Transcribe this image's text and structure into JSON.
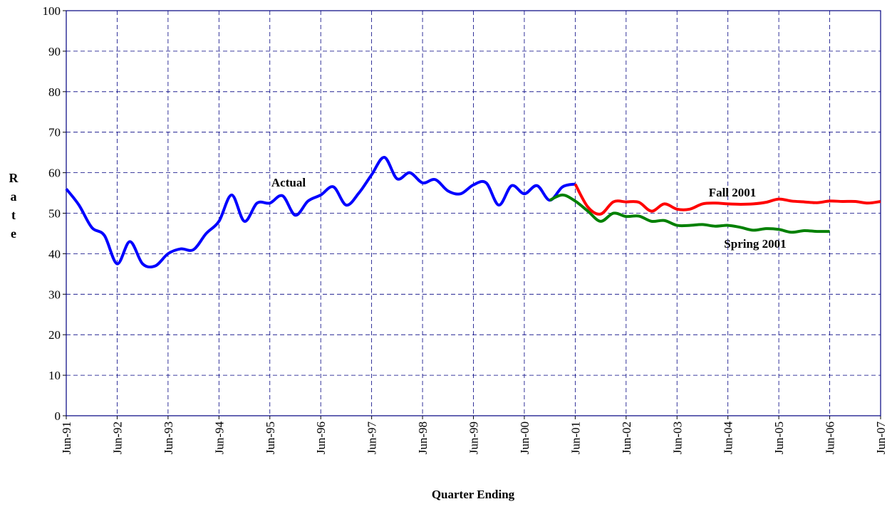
{
  "chart_data": {
    "type": "line",
    "x_label": "Quarter Ending",
    "y_label": "Rate",
    "categories": [
      "Jun-91",
      null,
      null,
      null,
      "Jun-92",
      null,
      null,
      null,
      "Jun-93",
      null,
      null,
      null,
      "Jun-94",
      null,
      null,
      null,
      "Jun-95",
      null,
      null,
      null,
      "Jun-96",
      null,
      null,
      null,
      "Jun-97",
      null,
      null,
      null,
      "Jun-98",
      null,
      null,
      null,
      "Jun-99",
      null,
      null,
      null,
      "Jun-00",
      null,
      null,
      null,
      "Jun-01",
      null,
      null,
      null,
      "Jun-02",
      null,
      null,
      null,
      "Jun-03",
      null,
      null,
      null,
      "Jun-04",
      null,
      null,
      null,
      "Jun-05",
      null,
      null,
      null,
      "Jun-06",
      null,
      null,
      null,
      "Jun-07"
    ],
    "series": [
      {
        "name": "Actual",
        "color": "#0000ff",
        "values": [
          56,
          52,
          46.5,
          44.5,
          37.5,
          43,
          37.5,
          37,
          40,
          41.2,
          41,
          45,
          48,
          54.5,
          48,
          52.5,
          52.5,
          54.3,
          49.5,
          53,
          54.5,
          56.5,
          52,
          55,
          59.5,
          63.8,
          58.5,
          60,
          57.5,
          58.3,
          55.5,
          54.8,
          57,
          57.5,
          52,
          56.8,
          54.8,
          56.8,
          53.2,
          56.5,
          57.2,
          null,
          null,
          null,
          null,
          null,
          null,
          null,
          null,
          null,
          null,
          null,
          null,
          null,
          null,
          null,
          null,
          null,
          null,
          null,
          null,
          null,
          null,
          null,
          null
        ]
      },
      {
        "name": "Spring 2001",
        "color": "#008000",
        "values": [
          null,
          null,
          null,
          null,
          null,
          null,
          null,
          null,
          null,
          null,
          null,
          null,
          null,
          null,
          null,
          null,
          null,
          null,
          null,
          null,
          null,
          null,
          null,
          null,
          null,
          null,
          null,
          null,
          null,
          null,
          null,
          null,
          null,
          null,
          null,
          null,
          null,
          null,
          53.2,
          54.5,
          53,
          50.5,
          48,
          50,
          49.2,
          49.3,
          48,
          48.2,
          47,
          47,
          47.2,
          46.8,
          47,
          46.5,
          45.8,
          46.2,
          46,
          45.3,
          45.7,
          45.5,
          45.5,
          null,
          null,
          null,
          null
        ]
      },
      {
        "name": "Fall 2001",
        "color": "#ff0000",
        "values": [
          null,
          null,
          null,
          null,
          null,
          null,
          null,
          null,
          null,
          null,
          null,
          null,
          null,
          null,
          null,
          null,
          null,
          null,
          null,
          null,
          null,
          null,
          null,
          null,
          null,
          null,
          null,
          null,
          null,
          null,
          null,
          null,
          null,
          null,
          null,
          null,
          null,
          null,
          null,
          null,
          57.2,
          51.5,
          49.8,
          52.8,
          52.8,
          52.7,
          50.5,
          52.3,
          51,
          51,
          52.3,
          52.5,
          52.3,
          52.2,
          52.3,
          52.7,
          53.5,
          53,
          52.8,
          52.6,
          53,
          52.9,
          52.9,
          52.5,
          52.9
        ]
      }
    ],
    "annotations": [
      "Actual",
      "Fall 2001",
      "Spring 2001"
    ],
    "ylim": [
      0,
      100
    ],
    "yticks": [
      0,
      10,
      20,
      30,
      40,
      50,
      60,
      70,
      80,
      90,
      100
    ],
    "grid": true
  }
}
